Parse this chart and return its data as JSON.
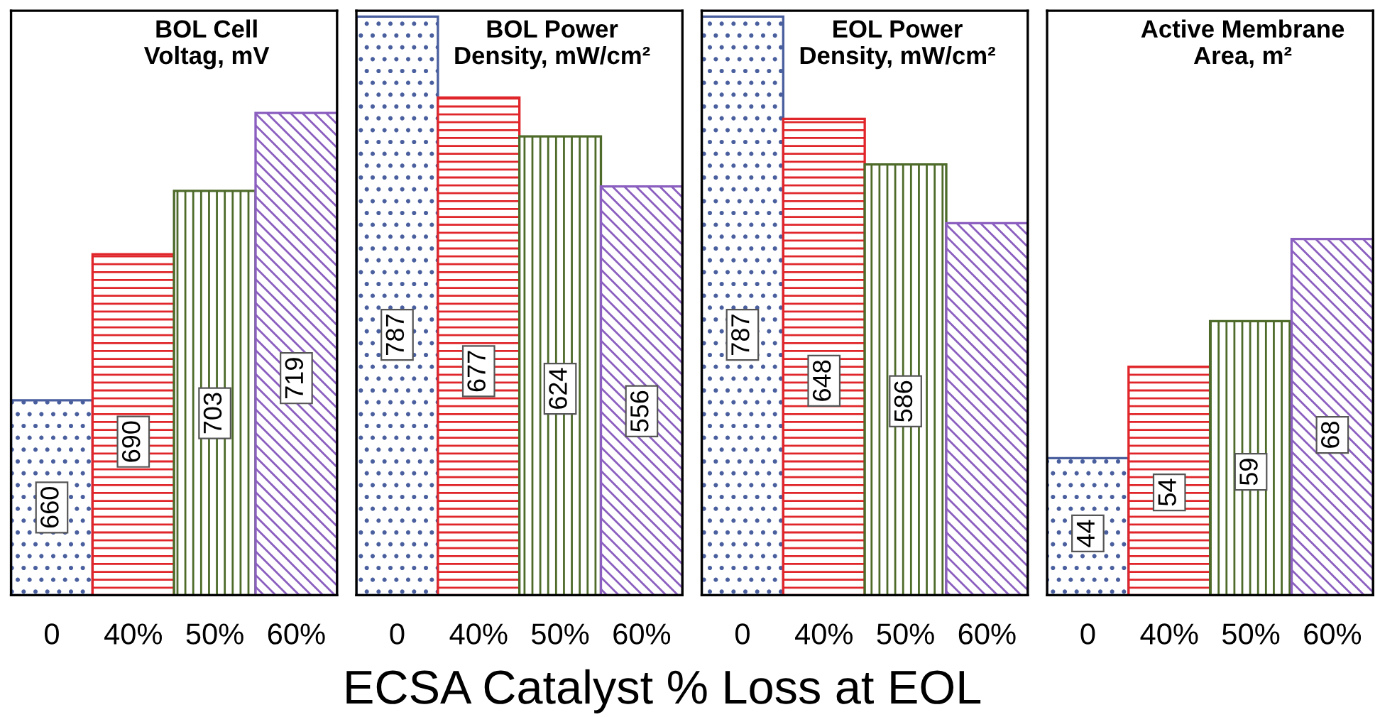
{
  "chart_data": [
    {
      "type": "bar",
      "title": "BOL Cell\nVoltag, mV",
      "xlabel": "ECSA Catalyst % Loss at EOL",
      "categories": [
        "0",
        "40%",
        "50%",
        "60%"
      ],
      "values": [
        660,
        690,
        703,
        719
      ],
      "colors": [
        "#4a5f9e",
        "#e0262a",
        "#4e6b2a",
        "#8b5fbf"
      ],
      "ylim": [
        620,
        740
      ],
      "data_labels": true,
      "tick_labels": "x"
    },
    {
      "type": "bar",
      "title": "BOL Power\nDensity, mW/cm²",
      "categories": [
        "0",
        "40%",
        "50%",
        "60%"
      ],
      "values": [
        787,
        677,
        624,
        556
      ],
      "colors": [
        "#4a5f9e",
        "#e0262a",
        "#4e6b2a",
        "#8b5fbf"
      ],
      "ylim": [
        0,
        795
      ],
      "data_labels": true,
      "tick_labels": "x"
    },
    {
      "type": "bar",
      "title": "EOL Power\nDensity, mW/cm²",
      "categories": [
        "0",
        "40%",
        "50%",
        "60%"
      ],
      "values": [
        787,
        648,
        586,
        506
      ],
      "value_labels": [
        "787",
        "648",
        "586",
        null
      ],
      "colors": [
        "#4a5f9e",
        "#e0262a",
        "#4e6b2a",
        "#8b5fbf"
      ],
      "ylim": [
        0,
        795
      ],
      "tick_labels": "x"
    },
    {
      "type": "bar",
      "title": "Active Membrane\nArea, m²",
      "categories": [
        "0",
        "40%",
        "50%",
        "60%"
      ],
      "values": [
        44,
        54,
        59,
        68
      ],
      "colors": [
        "#4a5f9e",
        "#e0262a",
        "#4e6b2a",
        "#8b5fbf"
      ],
      "ylim": [
        29,
        93
      ],
      "data_labels": true,
      "tick_labels": "x"
    }
  ]
}
